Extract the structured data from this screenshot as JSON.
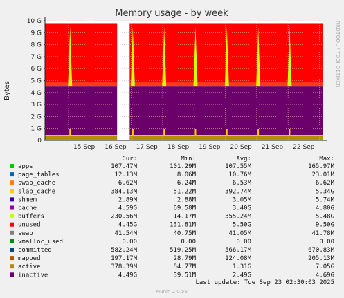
{
  "chart_data": {
    "type": "area",
    "title": "Memory usage - by week",
    "ylabel": "Bytes",
    "side_label": "RRDTOOL / TOBI OETIKER",
    "ylim": [
      0,
      10
    ],
    "yticks": [
      "0",
      "1 G",
      "2 G",
      "3 G",
      "4 G",
      "5 G",
      "6 G",
      "7 G",
      "8 G",
      "9 G",
      "10 G"
    ],
    "xticks": [
      "15 Sep",
      "16 Sep",
      "17 Sep",
      "18 Sep",
      "19 Sep",
      "20 Sep",
      "21 Sep",
      "22 Sep"
    ],
    "x_range_days": [
      14.25,
      23.1
    ],
    "gap_days": [
      16.55,
      16.95
    ],
    "spike_days": [
      15.05,
      17.05,
      18.05,
      19.05,
      20.05,
      21.05,
      22.05
    ],
    "total_gb": 9.8,
    "stack_levels_gb": {
      "base": 0.08,
      "active": 0.35,
      "shmem_top": 0.45,
      "inactive_top": 4.5,
      "unused_top": 9.8
    },
    "grid": true,
    "columns": [
      "Cur:",
      "Min:",
      "Avg:",
      "Max:"
    ],
    "series": [
      {
        "name": "apps",
        "color": "#00cc00",
        "cur": "107.47M",
        "min": "101.29M",
        "avg": "107.55M",
        "max": "165.97M"
      },
      {
        "name": "page_tables",
        "color": "#0066b3",
        "cur": "12.13M",
        "min": "8.06M",
        "avg": "10.76M",
        "max": "23.01M"
      },
      {
        "name": "swap_cache",
        "color": "#ff8000",
        "cur": "6.62M",
        "min": "6.24M",
        "avg": "6.53M",
        "max": "6.62M"
      },
      {
        "name": "slab_cache",
        "color": "#ffcc00",
        "cur": "384.13M",
        "min": "51.22M",
        "avg": "392.74M",
        "max": "5.34G"
      },
      {
        "name": "shmem",
        "color": "#330099",
        "cur": "2.89M",
        "min": "2.88M",
        "avg": "3.05M",
        "max": "5.74M"
      },
      {
        "name": "cache",
        "color": "#990099",
        "cur": "4.59G",
        "min": "69.58M",
        "avg": "3.40G",
        "max": "4.80G"
      },
      {
        "name": "buffers",
        "color": "#ccff00",
        "cur": "230.56M",
        "min": "14.17M",
        "avg": "355.24M",
        "max": "5.48G"
      },
      {
        "name": "unused",
        "color": "#ff0000",
        "cur": "4.45G",
        "min": "131.81M",
        "avg": "5.50G",
        "max": "9.50G"
      },
      {
        "name": "swap",
        "color": "#808080",
        "cur": "41.54M",
        "min": "40.75M",
        "avg": "41.05M",
        "max": "41.78M"
      },
      {
        "name": "vmalloc_used",
        "color": "#008f00",
        "cur": "0.00",
        "min": "0.00",
        "avg": "0.00",
        "max": "0.00"
      },
      {
        "name": "committed",
        "color": "#00487d",
        "cur": "582.24M",
        "min": "519.25M",
        "avg": "566.17M",
        "max": "670.83M"
      },
      {
        "name": "mapped",
        "color": "#b35a00",
        "cur": "197.17M",
        "min": "28.79M",
        "avg": "124.08M",
        "max": "205.13M"
      },
      {
        "name": "active",
        "color": "#b38f00",
        "cur": "378.39M",
        "min": "84.77M",
        "avg": "1.31G",
        "max": "7.05G"
      },
      {
        "name": "inactive",
        "color": "#6b006b",
        "cur": "4.49G",
        "min": "39.51M",
        "avg": "2.49G",
        "max": "4.69G"
      }
    ],
    "last_update": "Last update: Tue Sep 23 02:30:03 2025",
    "footer": "Munin 2.0.56"
  }
}
